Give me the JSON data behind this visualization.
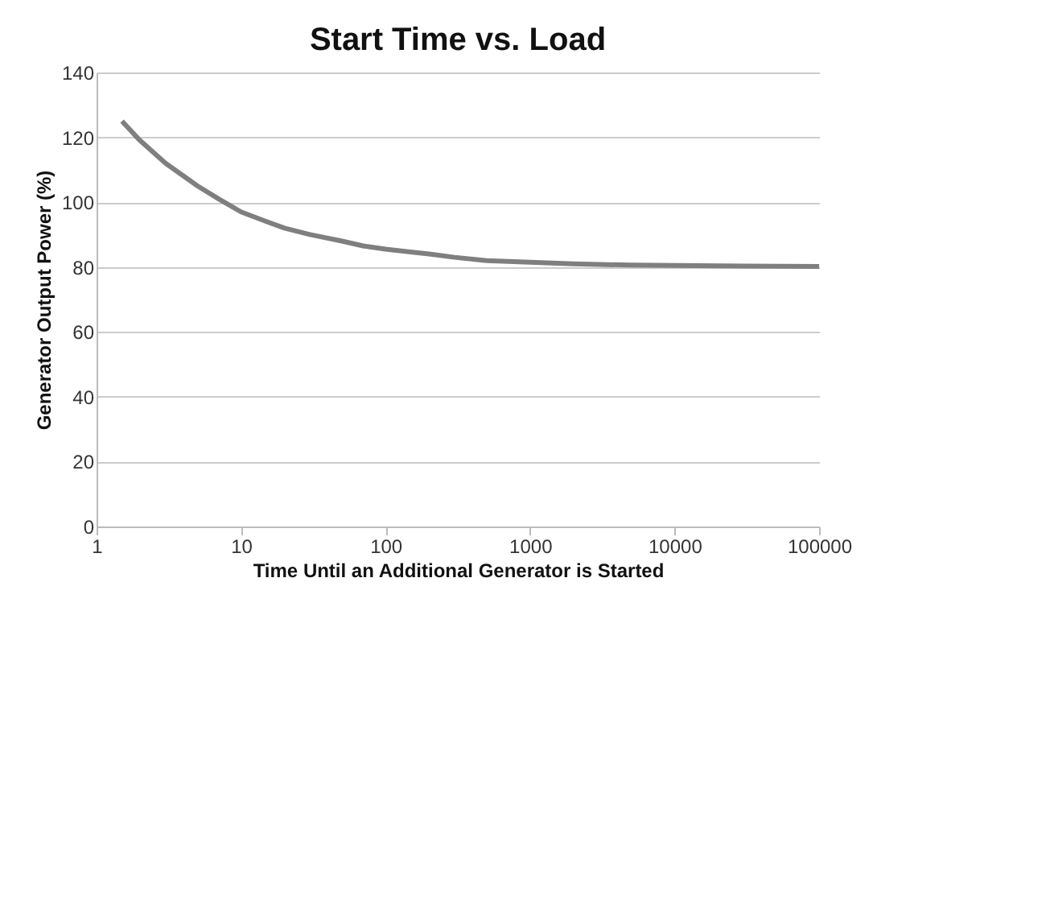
{
  "chart_data": {
    "type": "line",
    "title": "Start Time vs. Load",
    "xlabel": "Time Until an Additional Generator is Started",
    "ylabel": "Generator Output Power (%)",
    "log": "x",
    "xlim": [
      1,
      100000
    ],
    "xticks": [
      1,
      10,
      100,
      1000,
      10000,
      100000
    ],
    "ylim": [
      0,
      140
    ],
    "yticks": [
      0,
      20,
      40,
      60,
      80,
      100,
      120,
      140
    ],
    "grid": "y",
    "marker": "none",
    "line_style": "solid",
    "series": [
      {
        "color": "#7f7f7f",
        "x": [
          1.5,
          2,
          3,
          5,
          7,
          10,
          15,
          20,
          30,
          50,
          70,
          100,
          200,
          300,
          500,
          1000,
          2000,
          3000,
          5000,
          10000,
          30000,
          100000
        ],
        "values": [
          125,
          119,
          112,
          105,
          101,
          97,
          94,
          92,
          90,
          88,
          86.5,
          85.5,
          84,
          83,
          82,
          81.5,
          81,
          80.8,
          80.6,
          80.5,
          80.3,
          80.2
        ]
      }
    ]
  }
}
